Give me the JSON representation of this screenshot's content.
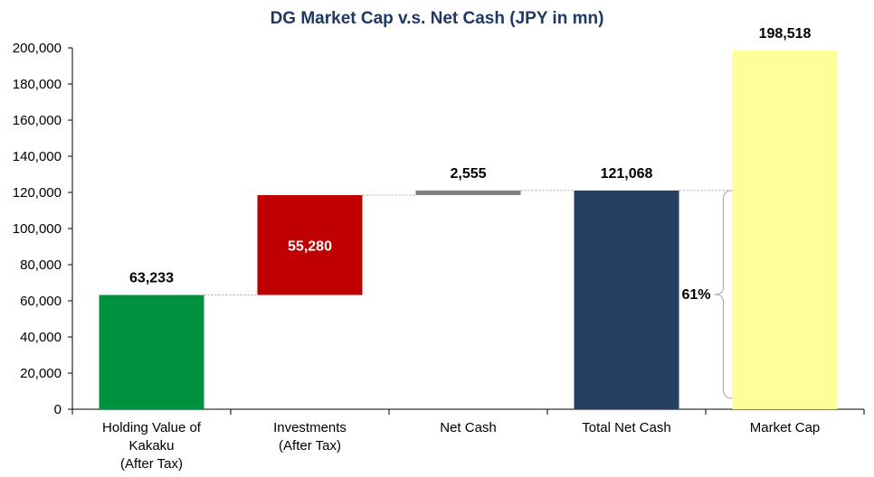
{
  "chart_data": {
    "type": "bar",
    "subtype": "waterfall",
    "title": "DG Market Cap v.s. Net Cash (JPY in mn)",
    "categories": [
      [
        "Holding Value of",
        "Kakaku",
        "(After Tax)"
      ],
      [
        "Investments",
        "(After Tax)"
      ],
      [
        "Net Cash"
      ],
      [
        "Total Net Cash"
      ],
      [
        "Market Cap"
      ]
    ],
    "bars": [
      {
        "base": 0,
        "value": 63233,
        "label": "63,233",
        "color": "#00913f",
        "label_color": "#000000",
        "label_position": "above"
      },
      {
        "base": 63233,
        "value": 55280,
        "label": "55,280",
        "color": "#c00000",
        "label_color": "#ffffff",
        "label_position": "inside"
      },
      {
        "base": 118513,
        "value": 2555,
        "label": "2,555",
        "color": "#808080",
        "label_color": "#000000",
        "label_position": "above"
      },
      {
        "base": 0,
        "value": 121068,
        "label": "121,068",
        "color": "#243f60",
        "label_color": "#000000",
        "label_position": "above"
      },
      {
        "base": 0,
        "value": 198518,
        "label": "198,518",
        "color": "#ffff99",
        "label_color": "#000000",
        "label_position": "above"
      }
    ],
    "yticks": [
      "0",
      "20,000",
      "40,000",
      "60,000",
      "80,000",
      "100,000",
      "120,000",
      "140,000",
      "160,000",
      "180,000",
      "200,000"
    ],
    "ylim": [
      0,
      200000
    ],
    "annotation": {
      "text": "61%",
      "from": 0,
      "to": 121068,
      "between": [
        3,
        4
      ]
    },
    "title_color": "#1f3864",
    "connector_color": "#a6a6a6"
  }
}
